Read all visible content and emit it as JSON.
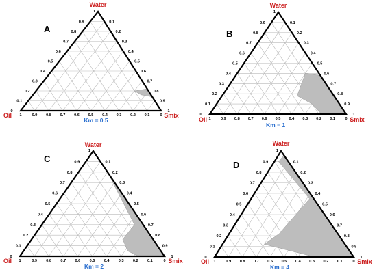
{
  "vertex_labels": {
    "top": "Water",
    "left": "Oil",
    "right": "Smix"
  },
  "tick_labels": {
    "left_edge": [
      "0",
      "0.1",
      "0.2",
      "0.3",
      "0.4",
      "0.5",
      "0.6",
      "0.7",
      "0.8",
      "0.9",
      "1"
    ],
    "right_edge": [
      "0",
      "0.1",
      "0.2",
      "0.3",
      "0.4",
      "0.5",
      "0.6",
      "0.7",
      "0.8",
      "0.9",
      "1"
    ],
    "bottom_edge": [
      "1",
      "0.9",
      "0.8",
      "0.7",
      "0.6",
      "0.5",
      "0.4",
      "0.3",
      "0.2",
      "0.1",
      "0"
    ]
  },
  "panels": [
    {
      "letter": "A",
      "km_label": "Km = 0.5",
      "km": 0.5,
      "region": [
        [
          1.0,
          0.0
        ],
        [
          0.86,
          0.14
        ],
        [
          0.77,
          0.16
        ],
        [
          0.7,
          0.2
        ],
        [
          0.78,
          0.22
        ],
        [
          0.92,
          0.08
        ]
      ]
    },
    {
      "letter": "B",
      "km_label": "Km = 1",
      "km": 1,
      "region": [
        [
          1.0,
          0.0
        ],
        [
          0.62,
          0.38
        ],
        [
          0.5,
          0.4
        ],
        [
          0.55,
          0.18
        ],
        [
          0.7,
          0.1
        ],
        [
          0.82,
          0.0
        ]
      ]
    },
    {
      "letter": "C",
      "km_label": "Km = 2",
      "km": 2,
      "region": [
        [
          0.04,
          0.96
        ],
        [
          1.0,
          0.0
        ],
        [
          0.82,
          0.0
        ],
        [
          0.72,
          0.05
        ],
        [
          0.63,
          0.16
        ],
        [
          0.64,
          0.3
        ],
        [
          0.2,
          0.8
        ]
      ]
    },
    {
      "letter": "D",
      "km_label": "Km = 4",
      "km": 4,
      "region": [
        [
          0.04,
          0.96
        ],
        [
          1.0,
          0.0
        ],
        [
          0.72,
          0.0
        ],
        [
          0.3,
          0.12
        ],
        [
          0.36,
          0.22
        ],
        [
          0.42,
          0.55
        ],
        [
          0.03,
          0.9
        ]
      ]
    }
  ],
  "colors": {
    "outline": "#000000",
    "grid": "#b9b9b9",
    "region_fill": "#bdbdbd",
    "vertex_label": "#cc1f1f",
    "km_label": "#2a6fcf"
  }
}
